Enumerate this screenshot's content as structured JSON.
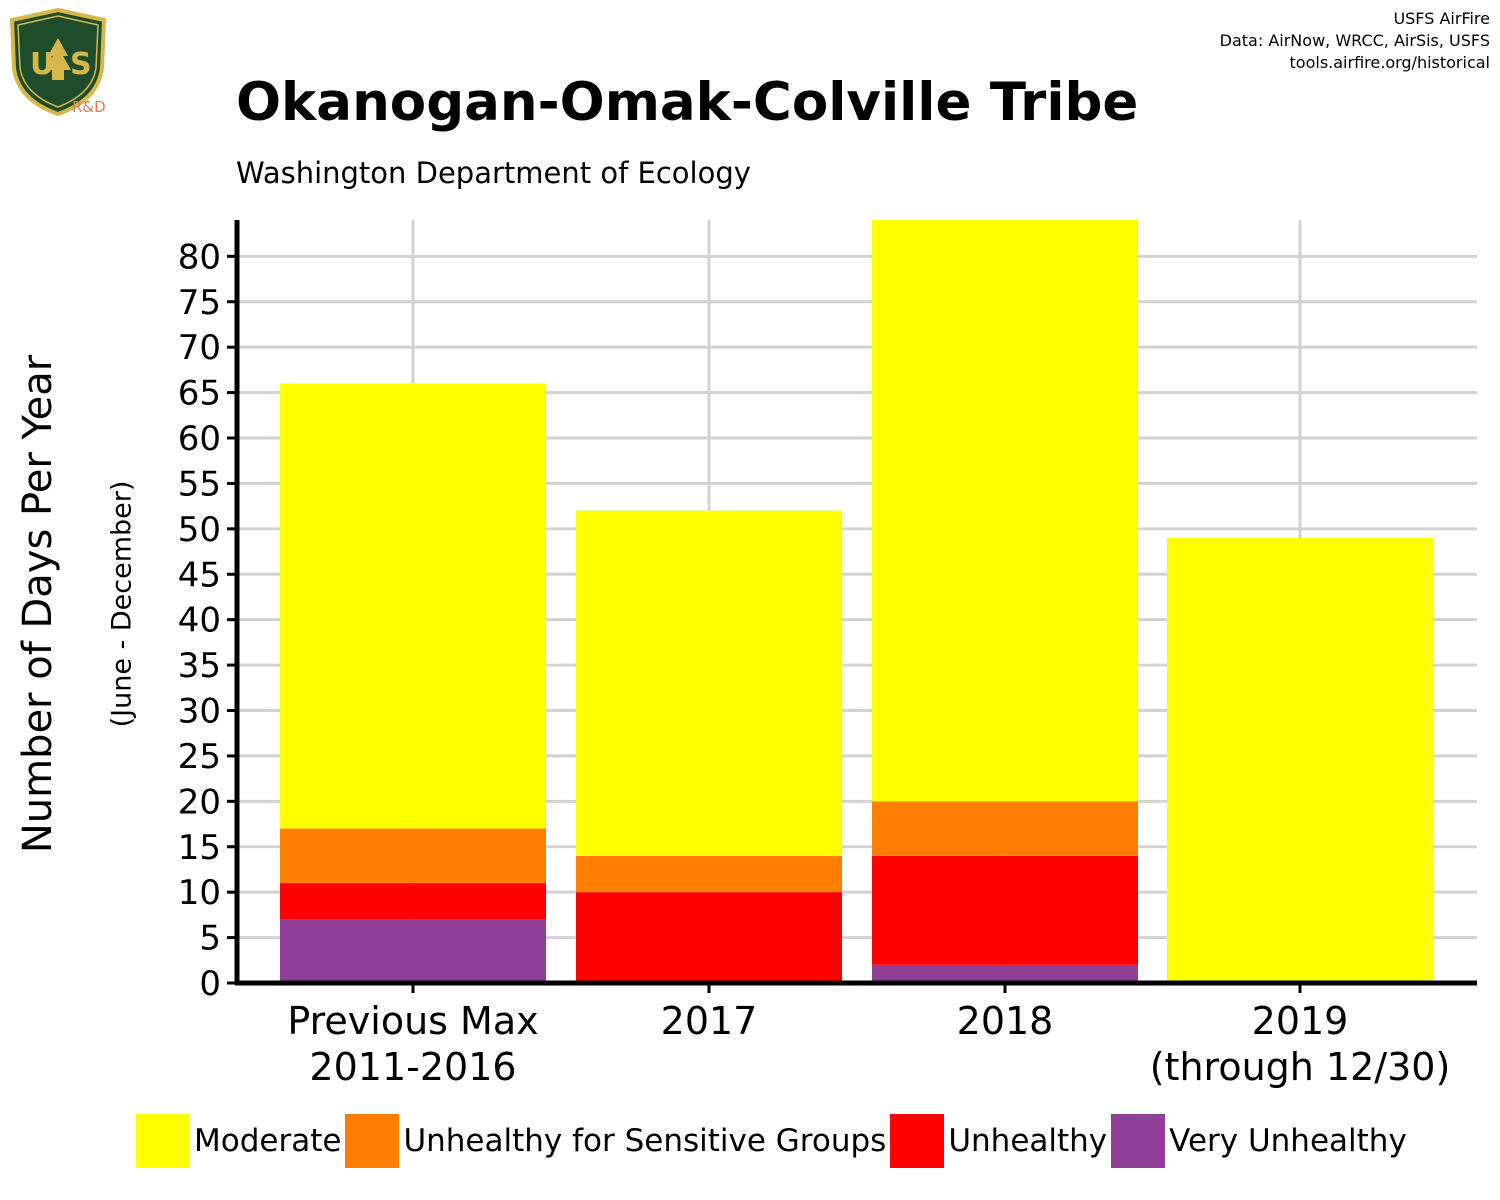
{
  "header": {
    "credits": [
      "USFS AirFire",
      "Data: AirNow, WRCC, AirSis, USFS",
      "tools.airfire.org/historical"
    ],
    "logo_text": "USFS R&D",
    "logo_rd": "R&D"
  },
  "chart_data": {
    "type": "bar",
    "stacked": true,
    "title": "Okanogan-Omak-Colville Tribe",
    "subtitle": "Washington Department of Ecology",
    "ylabel": "Number of Days Per Year",
    "ylabel_sub": "(June - December)",
    "xlabel": "",
    "ylim": [
      0,
      84
    ],
    "yticks": [
      0,
      5,
      10,
      15,
      20,
      25,
      30,
      35,
      40,
      45,
      50,
      55,
      60,
      65,
      70,
      75,
      80
    ],
    "grid": true,
    "legend_position": "bottom",
    "categories": [
      [
        "Previous Max",
        "2011-2016"
      ],
      [
        "2017"
      ],
      [
        "2018"
      ],
      [
        "2019",
        "(through 12/30)"
      ]
    ],
    "series": [
      {
        "name": "Very Unhealthy",
        "color": "#8f3f97",
        "values": [
          7,
          0,
          2,
          0
        ]
      },
      {
        "name": "Unhealthy",
        "color": "#ff0000",
        "values": [
          4,
          10,
          12,
          0
        ]
      },
      {
        "name": "Unhealthy for Sensitive Groups",
        "color": "#ff7e00",
        "values": [
          6,
          4,
          6,
          0
        ]
      },
      {
        "name": "Moderate",
        "color": "#ffff00",
        "values": [
          49,
          38,
          64,
          49
        ]
      }
    ],
    "legend_order": [
      "Moderate",
      "Unhealthy for Sensitive Groups",
      "Unhealthy",
      "Very Unhealthy"
    ]
  }
}
